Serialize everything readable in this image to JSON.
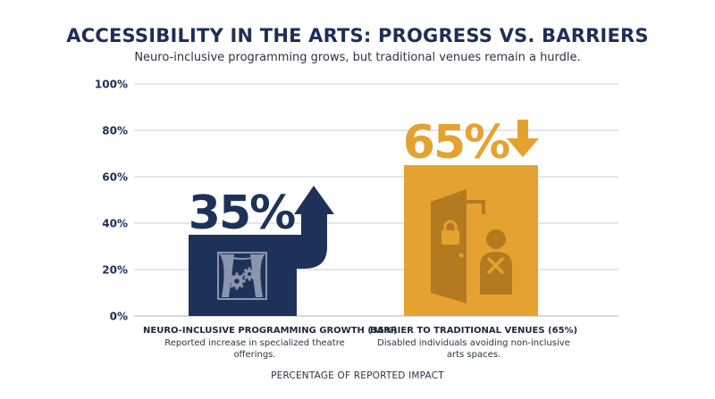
{
  "colors": {
    "navy": "#1e3259",
    "gold": "#e4a330",
    "gold_dark": "#b47a1f",
    "grid": "#c9cdd3",
    "text": "#1d2f55"
  },
  "chart_data": {
    "type": "bar",
    "title": "ACCESSIBILITY IN THE ARTS: PROGRESS VS. BARRIERS",
    "subtitle": "Neuro-inclusive programming grows, but traditional venues remain a hurdle.",
    "xlabel": "PERCENTAGE OF REPORTED IMPACT",
    "ylabel": "",
    "ylim": [
      0,
      100
    ],
    "yticks": [
      0,
      20,
      40,
      60,
      80,
      100
    ],
    "ytick_labels": [
      "0%",
      "20%",
      "40%",
      "60%",
      "80%",
      "100%"
    ],
    "grid": true,
    "categories": [
      "NEURO-INCLUSIVE PROGRAMMING GROWTH (35%)",
      "BARRIER TO TRADITIONAL VENUES (65%)"
    ],
    "descriptions": [
      "Reported increase in specialized theatre offerings.",
      "Disabled individuals avoiding non-inclusive arts spaces."
    ],
    "values": [
      35,
      65
    ],
    "data_labels": [
      "35%",
      "65%"
    ],
    "trend": [
      "up",
      "down"
    ],
    "bar_colors": [
      "#1e3259",
      "#e4a330"
    ],
    "icons": [
      "theatre-stage-gears-icon",
      "door-person-blocked-icon"
    ]
  }
}
